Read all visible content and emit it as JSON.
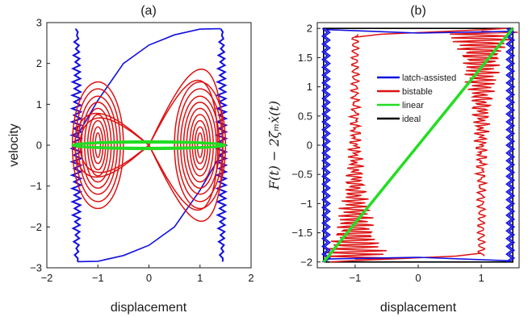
{
  "chart_data": [
    {
      "type": "line",
      "panel_label": "(a)",
      "xlabel": "displacement",
      "ylabel": "velocity",
      "xlim": [
        -2,
        2
      ],
      "ylim": [
        -3,
        3
      ],
      "xticks": [
        -2,
        -1,
        0,
        1,
        2
      ],
      "yticks": [
        -3,
        -2,
        -1,
        0,
        1,
        2,
        3
      ],
      "xtick_labels": [
        "−2",
        "−1",
        "0",
        "1",
        "2"
      ],
      "ytick_labels": [
        "−3",
        "−2",
        "−1",
        "0",
        "1",
        "2",
        "3"
      ],
      "grid": false,
      "legend": null,
      "series": [
        {
          "color": "#1010e0",
          "description_values": {
            "well_positions": [
              -1.42,
              1.42
            ],
            "velocity_limits": [
              -2.85,
              2.85
            ],
            "transition_arc_x": [
              -1.0,
              -0.5,
              0.0,
              0.5,
              1.0,
              1.4
            ],
            "transition_arc_y": [
              1.1,
              2.0,
              2.45,
              2.7,
              2.84,
              2.85
            ]
          }
        },
        {
          "color": "#dd1111",
          "description_values": {
            "well_centers": [
              -1.0,
              1.0
            ],
            "orbit_amplitudes_x": [
              0.05,
              0.1,
              0.15,
              0.2,
              0.26,
              0.32,
              0.38,
              0.44,
              0.5
            ],
            "orbit_amplitudes_y": [
              0.3,
              0.45,
              0.6,
              0.75,
              0.9,
              1.05,
              1.2,
              1.38,
              1.55
            ],
            "outer_orbit_x_range": [
              -1.45,
              1.45
            ],
            "outer_orbit_y_range": [
              -2.4,
              2.4
            ]
          }
        },
        {
          "color": "#22dd22",
          "description_values": {
            "ellipse_x_range": [
              -1.5,
              1.5
            ],
            "ellipse_y_range": [
              -0.1,
              0.1
            ]
          }
        }
      ]
    },
    {
      "type": "line",
      "panel_label": "(b)",
      "xlabel": "displacement",
      "ylabel_math": "F(t) − 2ζₘẋ(t)",
      "xlim": [
        -1.6,
        1.6
      ],
      "ylim": [
        -2.1,
        2.1
      ],
      "xticks": [
        -1,
        0,
        1
      ],
      "yticks": [
        -2,
        -1.5,
        -1,
        -0.5,
        0,
        0.5,
        1,
        1.5,
        2
      ],
      "xtick_labels": [
        "−1",
        "0",
        "1"
      ],
      "ytick_labels": [
        "−2",
        "−1.5",
        "−1",
        "−0.5",
        "0",
        "0.5",
        "1",
        "1.5",
        "2"
      ],
      "grid": false,
      "legend": {
        "placement": "center",
        "entries": [
          {
            "label": "latch-assisted",
            "color": "#1010e0"
          },
          {
            "label": "bistable",
            "color": "#dd1111"
          },
          {
            "label": "linear",
            "color": "#22dd22"
          },
          {
            "label": "ideal",
            "color": "#000000"
          }
        ]
      },
      "series": [
        {
          "name": "latch-assisted",
          "color": "#1010e0",
          "x": [
            -1.5,
            -1.5,
            1.5,
            1.5,
            -1.5
          ],
          "y": [
            -2.0,
            2.0,
            2.0,
            -2.0,
            -2.0
          ]
        },
        {
          "name": "bistable",
          "color": "#dd1111",
          "x": [
            -1.1,
            -1.0,
            1.0,
            1.1
          ],
          "y": [
            -2.0,
            1.8,
            -1.8,
            2.0
          ]
        },
        {
          "name": "linear",
          "color": "#22dd22",
          "x": [
            -1.5,
            1.5
          ],
          "y": [
            -2.0,
            2.0
          ]
        },
        {
          "name": "ideal",
          "color": "#000000",
          "x": [
            -1.5,
            -1.5,
            1.5,
            1.5,
            -1.5
          ],
          "y": [
            -2.0,
            2.0,
            2.0,
            -2.0,
            -2.0
          ]
        }
      ]
    }
  ]
}
